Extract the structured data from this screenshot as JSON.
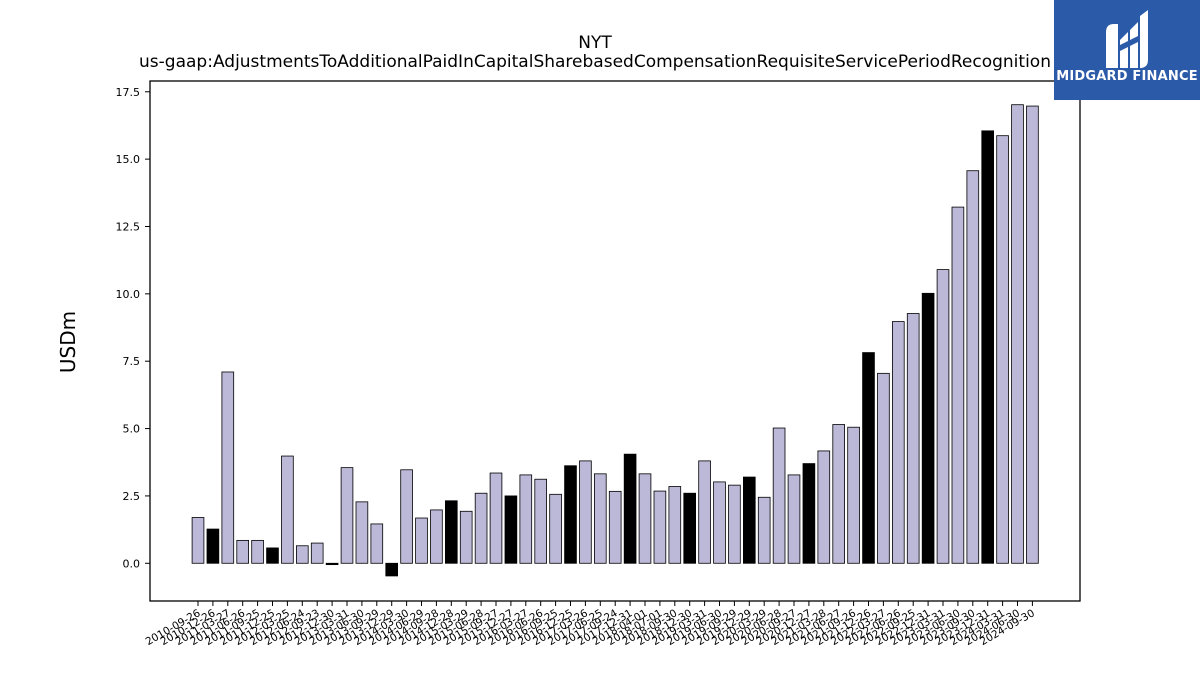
{
  "chart_data": {
    "type": "bar",
    "title": "NYT",
    "subtitle": "us-gaap:AdjustmentsToAdditionalPaidInCapitalSharebasedCompensationRequisiteServicePeriodRecognition",
    "ylabel": "USDm",
    "xlabel": "",
    "ylim": [
      -1.4,
      17.9
    ],
    "yticks": [
      "0.0",
      "2.5",
      "5.0",
      "7.5",
      "10.0",
      "12.5",
      "15.0",
      "17.5"
    ],
    "grid": false,
    "categories": [
      "2010-09-26",
      "2010-12-26",
      "2011-03-27",
      "2011-06-26",
      "2011-09-25",
      "2011-12-25",
      "2012-03-25",
      "2012-06-24",
      "2012-09-23",
      "2012-12-30",
      "2013-03-31",
      "2013-06-30",
      "2013-09-29",
      "2013-12-29",
      "2014-03-30",
      "2014-06-29",
      "2014-09-28",
      "2014-12-28",
      "2015-03-29",
      "2015-06-28",
      "2015-09-27",
      "2015-12-27",
      "2016-03-27",
      "2016-06-26",
      "2016-09-25",
      "2016-12-25",
      "2017-03-26",
      "2017-06-25",
      "2017-09-24",
      "2017-12-31",
      "2018-04-01",
      "2018-07-01",
      "2018-09-30",
      "2018-12-30",
      "2019-03-31",
      "2019-06-30",
      "2019-09-29",
      "2019-12-29",
      "2020-03-29",
      "2020-06-28",
      "2020-09-27",
      "2020-12-27",
      "2021-03-28",
      "2021-06-27",
      "2021-09-26",
      "2021-12-26",
      "2022-03-27",
      "2022-06-26",
      "2022-09-25",
      "2022-12-31",
      "2023-03-31",
      "2023-06-30",
      "2023-09-30",
      "2023-12-31",
      "2024-03-31",
      "2024-06-30",
      "2024-09-30"
    ],
    "values": [
      1.7,
      1.27,
      7.1,
      0.85,
      0.85,
      0.57,
      3.98,
      0.65,
      0.75,
      -0.05,
      3.55,
      2.28,
      1.46,
      -0.47,
      3.47,
      1.68,
      1.98,
      2.32,
      1.93,
      2.6,
      3.35,
      2.5,
      3.28,
      3.12,
      2.56,
      3.62,
      3.8,
      3.32,
      2.67,
      4.05,
      3.32,
      2.68,
      2.85,
      2.6,
      3.8,
      3.02,
      2.9,
      3.2,
      2.45,
      5.02,
      3.28,
      3.7,
      4.17,
      5.15,
      5.05,
      7.82,
      7.05,
      8.97,
      9.27,
      10.02,
      10.9,
      13.22,
      14.57,
      16.05,
      15.87,
      17.02,
      16.97
    ],
    "highlight": [
      false,
      true,
      false,
      false,
      false,
      true,
      false,
      false,
      false,
      true,
      false,
      false,
      false,
      true,
      false,
      false,
      false,
      true,
      false,
      false,
      false,
      true,
      false,
      false,
      false,
      true,
      false,
      false,
      false,
      true,
      false,
      false,
      false,
      true,
      false,
      false,
      false,
      true,
      false,
      false,
      false,
      true,
      false,
      false,
      false,
      true,
      false,
      false,
      false,
      true,
      false,
      false,
      false,
      true,
      false,
      false,
      false
    ],
    "colors": {
      "bar": "#bcb9d8",
      "highlight_bar": "#000000",
      "edge": "#000000"
    }
  },
  "logo": {
    "text": "MIDGARD FINANCE",
    "background": "#2a5aa8"
  }
}
